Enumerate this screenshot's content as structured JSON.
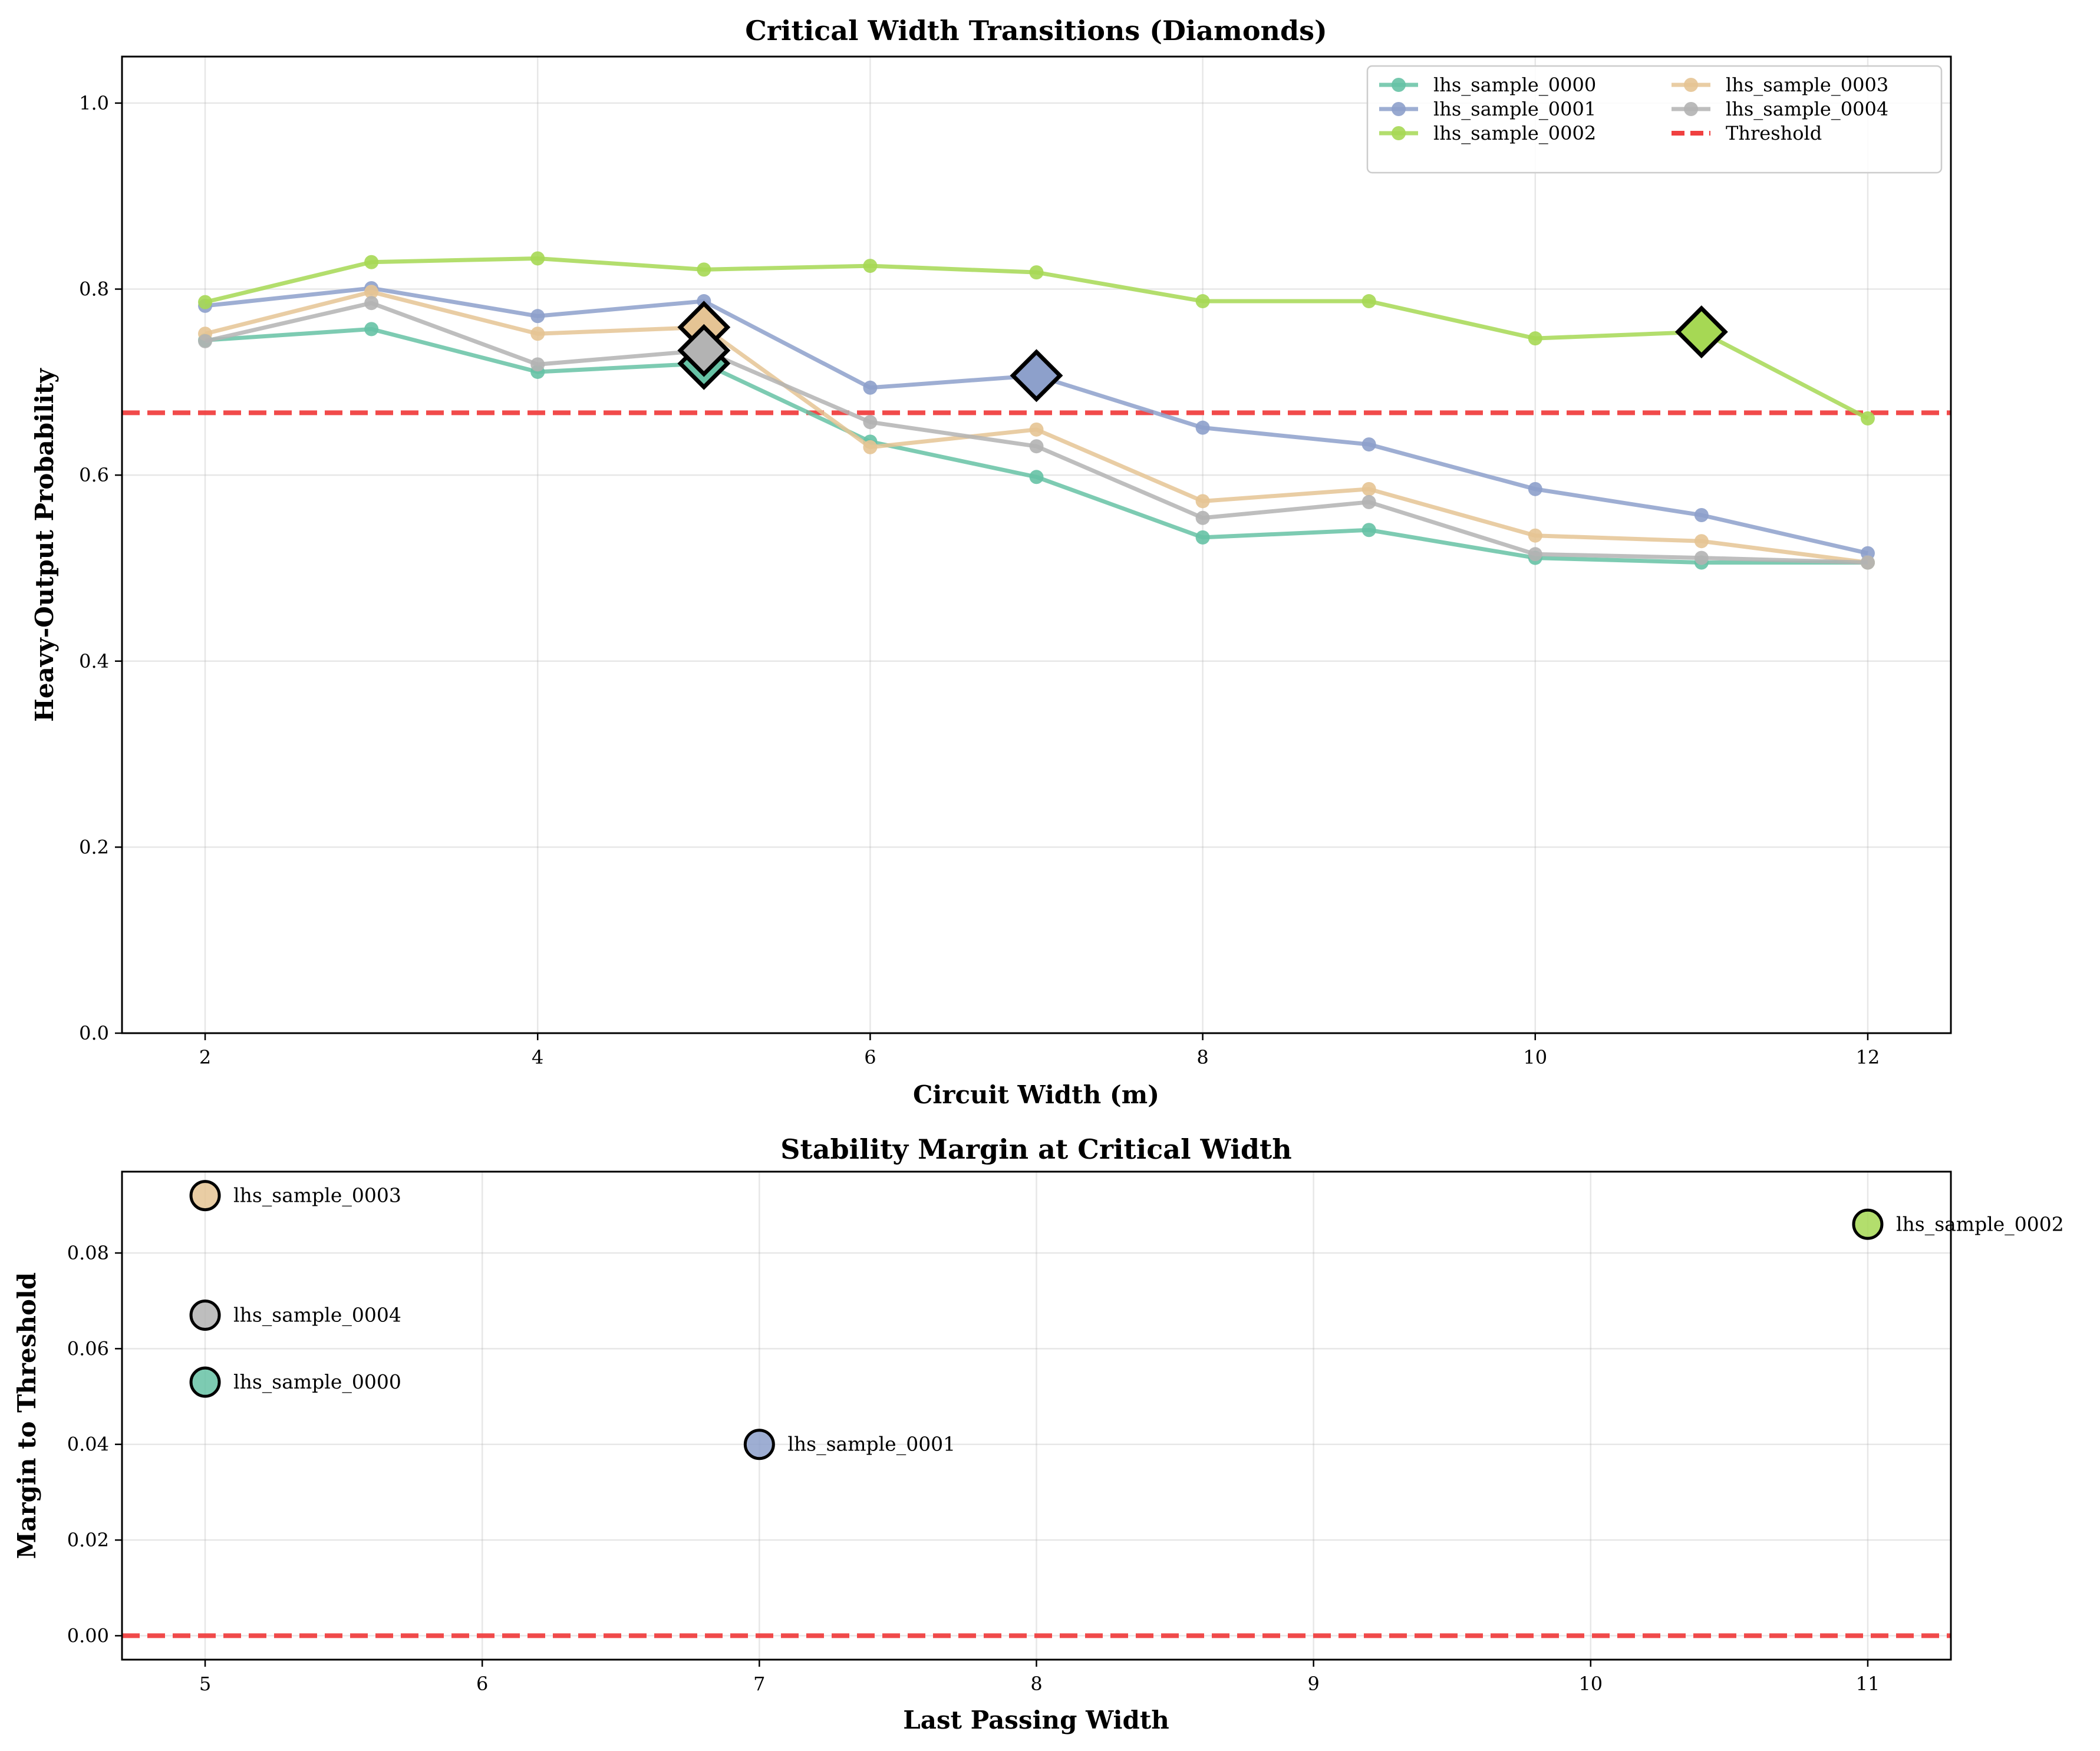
{
  "chart_data": [
    {
      "type": "line",
      "title": "Critical Width Transitions (Diamonds)",
      "xlabel": "Circuit Width (m)",
      "ylabel": "Heavy-Output Probability",
      "xlim": [
        1.5,
        12.5
      ],
      "ylim": [
        0.0,
        1.05
      ],
      "xticks": [
        "2",
        "4",
        "6",
        "8",
        "10",
        "12"
      ],
      "yticks": [
        "0.0",
        "0.2",
        "0.4",
        "0.6",
        "0.8",
        "1.0"
      ],
      "grid": true,
      "legend_position": "top-right",
      "legend_columns": 2,
      "x": [
        2,
        3,
        4,
        5,
        6,
        7,
        8,
        9,
        10,
        11,
        12
      ],
      "threshold": {
        "name": "Threshold",
        "value": 0.667,
        "color": "#f04040"
      },
      "series": [
        {
          "name": "lhs_sample_0000",
          "color": "#66c2a5",
          "values": [
            0.745,
            0.757,
            0.711,
            0.72,
            0.636,
            0.598,
            0.533,
            0.541,
            0.511,
            0.506,
            0.506
          ],
          "critical_x": 5,
          "critical_y": 0.72
        },
        {
          "name": "lhs_sample_0001",
          "color": "#8da0cb",
          "values": [
            0.782,
            0.801,
            0.771,
            0.787,
            0.694,
            0.707,
            0.651,
            0.633,
            0.585,
            0.557,
            0.516
          ],
          "critical_x": 7,
          "critical_y": 0.707
        },
        {
          "name": "lhs_sample_0002",
          "color": "#a6d854",
          "values": [
            0.786,
            0.829,
            0.833,
            0.821,
            0.825,
            0.818,
            0.787,
            0.787,
            0.747,
            0.754,
            0.661
          ],
          "critical_x": 11,
          "critical_y": 0.754
        },
        {
          "name": "lhs_sample_0003",
          "color": "#e5c494",
          "values": [
            0.752,
            0.797,
            0.752,
            0.759,
            0.63,
            0.649,
            0.572,
            0.585,
            0.535,
            0.529,
            0.506
          ],
          "critical_x": 5,
          "critical_y": 0.759
        },
        {
          "name": "lhs_sample_0004",
          "color": "#b3b3b3",
          "values": [
            0.744,
            0.785,
            0.719,
            0.734,
            0.657,
            0.631,
            0.554,
            0.571,
            0.515,
            0.511,
            0.506
          ],
          "critical_x": 5,
          "critical_y": 0.734
        }
      ]
    },
    {
      "type": "scatter",
      "title": "Stability Margin at Critical Width",
      "xlabel": "Last Passing Width",
      "ylabel": "Margin to Threshold",
      "xlim": [
        4.7,
        11.3
      ],
      "ylim": [
        -0.005,
        0.097
      ],
      "xticks": [
        "5",
        "6",
        "7",
        "8",
        "9",
        "10",
        "11"
      ],
      "yticks": [
        "0.00",
        "0.02",
        "0.04",
        "0.06",
        "0.08"
      ],
      "grid": true,
      "zero_line": {
        "value": 0.0,
        "color": "#f04040"
      },
      "points": [
        {
          "label": "lhs_sample_0003",
          "x": 5,
          "y": 0.092,
          "color": "#e5c494"
        },
        {
          "label": "lhs_sample_0004",
          "x": 5,
          "y": 0.067,
          "color": "#b3b3b3"
        },
        {
          "label": "lhs_sample_0000",
          "x": 5,
          "y": 0.053,
          "color": "#66c2a5"
        },
        {
          "label": "lhs_sample_0001",
          "x": 7,
          "y": 0.04,
          "color": "#8da0cb"
        },
        {
          "label": "lhs_sample_0002",
          "x": 11,
          "y": 0.086,
          "color": "#a6d854"
        }
      ]
    }
  ]
}
